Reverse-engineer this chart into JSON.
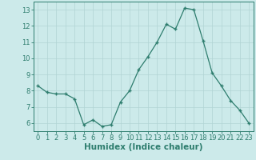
{
  "x": [
    0,
    1,
    2,
    3,
    4,
    5,
    6,
    7,
    8,
    9,
    10,
    11,
    12,
    13,
    14,
    15,
    16,
    17,
    18,
    19,
    20,
    21,
    22,
    23
  ],
  "y": [
    8.3,
    7.9,
    7.8,
    7.8,
    7.5,
    5.9,
    6.2,
    5.8,
    5.9,
    7.3,
    8.0,
    9.3,
    10.1,
    11.0,
    12.1,
    11.8,
    13.1,
    13.0,
    11.1,
    9.1,
    8.3,
    7.4,
    6.8,
    6.0
  ],
  "xlabel": "Humidex (Indice chaleur)",
  "ylim": [
    5.5,
    13.5
  ],
  "xlim": [
    -0.5,
    23.5
  ],
  "yticks": [
    6,
    7,
    8,
    9,
    10,
    11,
    12,
    13
  ],
  "xticks": [
    0,
    1,
    2,
    3,
    4,
    5,
    6,
    7,
    8,
    9,
    10,
    11,
    12,
    13,
    14,
    15,
    16,
    17,
    18,
    19,
    20,
    21,
    22,
    23
  ],
  "line_color": "#2e7d6e",
  "bg_color": "#cceaea",
  "grid_color": "#b0d4d4",
  "tick_label_fontsize": 6.0,
  "xlabel_fontsize": 7.5
}
